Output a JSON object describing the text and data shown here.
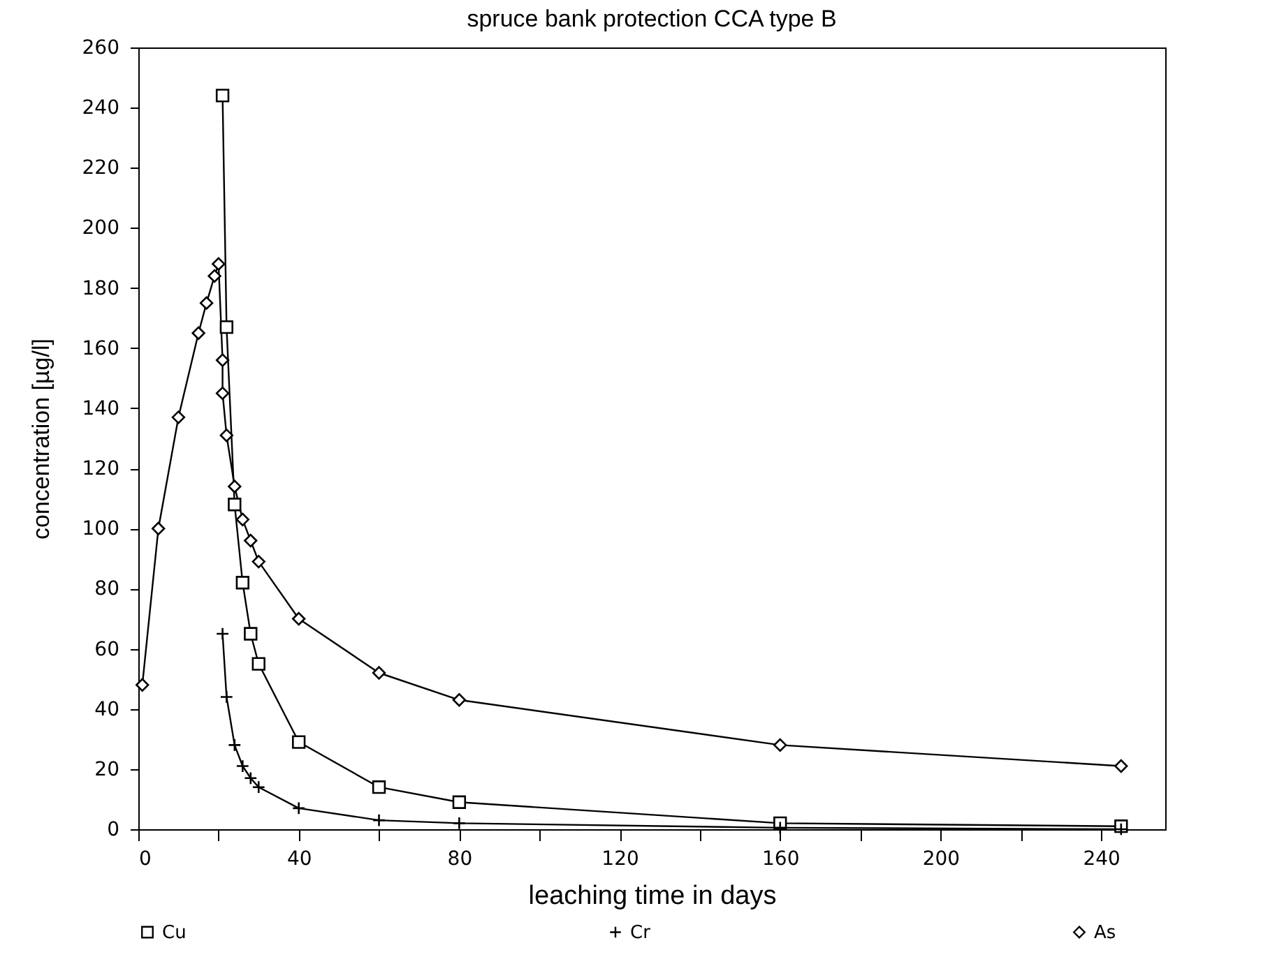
{
  "chart_data": {
    "type": "line",
    "title": "spruce bank protection CCA type B",
    "xlabel": "leaching time in days",
    "ylabel": "concentration [µg/l]",
    "xlim": [
      0,
      256
    ],
    "xticks": [
      0,
      {
        "value": 20,
        "label": null
      },
      40,
      {
        "value": 60,
        "label": null
      },
      80,
      {
        "value": 100,
        "label": null
      },
      120,
      {
        "value": 140,
        "label": null
      },
      160,
      {
        "value": 180,
        "label": null
      },
      200,
      {
        "value": 220,
        "label": null
      },
      240
    ],
    "ylim": [
      0,
      260
    ],
    "yticks": [
      0,
      20,
      40,
      60,
      80,
      100,
      120,
      140,
      160,
      180,
      200,
      220,
      240,
      260
    ],
    "grid": false,
    "legend": "bottom",
    "line_style": "solid",
    "series": [
      {
        "name": "Cu",
        "color": "#000000",
        "marker": "square",
        "x": [
          21,
          22,
          24,
          26,
          28,
          30,
          40,
          60,
          80,
          160,
          245
        ],
        "values": [
          244,
          167,
          108,
          82,
          65,
          55,
          29,
          14,
          9,
          2,
          1
        ]
      },
      {
        "name": "Cr",
        "color": "#000000",
        "marker": "cross",
        "x": [
          21,
          22,
          24,
          26,
          28,
          30,
          40,
          60,
          80,
          160,
          245
        ],
        "values": [
          65,
          44,
          28,
          21,
          17,
          14,
          7,
          3,
          2,
          0.5,
          0
        ]
      },
      {
        "name": "As",
        "color": "#000000",
        "marker": "diamond",
        "x": [
          1,
          5,
          10,
          15,
          17,
          19,
          20,
          21,
          21,
          22,
          24,
          26,
          28,
          30,
          40,
          60,
          80,
          160,
          245
        ],
        "values": [
          48,
          100,
          137,
          165,
          175,
          184,
          188,
          156,
          145,
          131,
          114,
          103,
          96,
          89,
          70,
          52,
          43,
          28,
          21
        ]
      }
    ]
  }
}
